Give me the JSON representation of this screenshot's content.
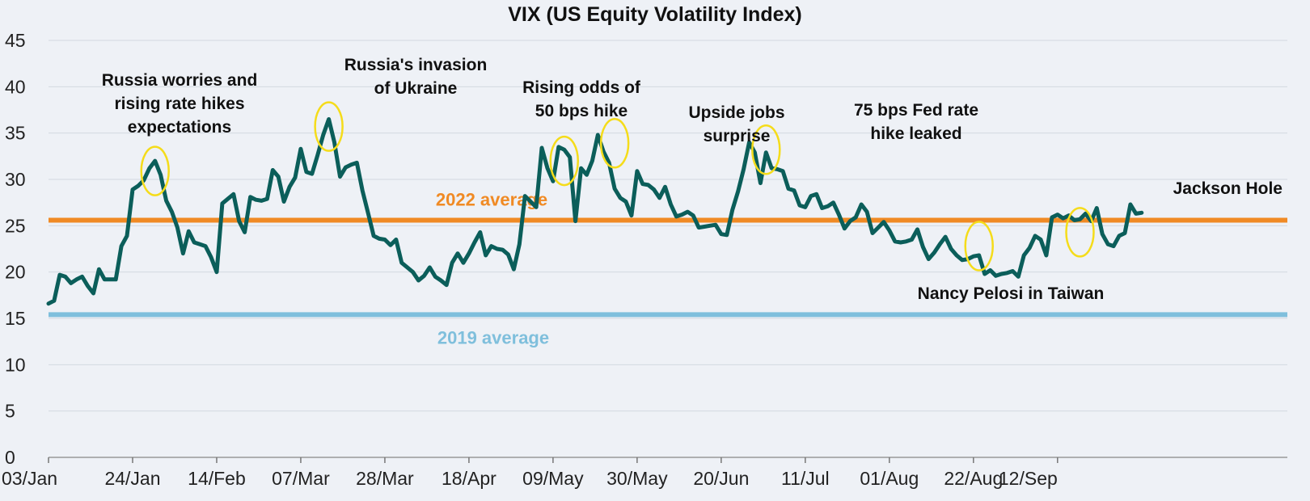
{
  "chart_data": {
    "type": "line",
    "title": "VIX (US Equity Volatility Index)",
    "xlabel": "",
    "ylabel": "",
    "ylim": [
      0,
      45
    ],
    "yticks": [
      0,
      5,
      10,
      15,
      20,
      25,
      30,
      35,
      40,
      45
    ],
    "xticks": [
      "03/Jan",
      "24/Jan",
      "14/Feb",
      "07/Mar",
      "28/Mar",
      "18/Apr",
      "09/May",
      "30/May",
      "20/Jun",
      "11/Jul",
      "01/Aug",
      "22/Aug",
      "12/Sep"
    ],
    "grid": true,
    "colors": {
      "series": "#0b5e5a",
      "avg_2022": "#f08a24",
      "avg_2019": "#7fbfdc",
      "highlight": "#f5dc1a"
    },
    "series": [
      {
        "name": "",
        "values": [
          16.6,
          16.9,
          19.7,
          19.5,
          18.8,
          19.2,
          19.5,
          18.5,
          17.7,
          20.3,
          19.2,
          19.2,
          19.2,
          22.8,
          23.9,
          28.9,
          29.3,
          29.9,
          31.2,
          32.0,
          30.5,
          27.7,
          26.5,
          24.8,
          22.0,
          24.4,
          23.2,
          23.0,
          22.8,
          21.6,
          20.0,
          27.4,
          27.9,
          28.4,
          25.5,
          24.3,
          28.1,
          27.8,
          27.7,
          27.9,
          31.0,
          30.3,
          27.6,
          29.2,
          30.2,
          33.3,
          30.8,
          30.6,
          32.6,
          34.8,
          36.5,
          34.0,
          30.3,
          31.3,
          31.6,
          31.8,
          28.8,
          26.4,
          23.9,
          23.6,
          23.5,
          22.9,
          23.5,
          21.0,
          20.5,
          20.0,
          19.1,
          19.6,
          20.5,
          19.5,
          19.1,
          18.6,
          21.0,
          22.0,
          21.0,
          22.0,
          23.2,
          24.3,
          21.8,
          22.8,
          22.5,
          22.4,
          21.9,
          20.3,
          23.0,
          28.2,
          27.6,
          27.0,
          33.4,
          31.2,
          29.8,
          33.5,
          33.2,
          32.4,
          25.5,
          31.2,
          30.5,
          32.0,
          34.8,
          33.0,
          31.8,
          29.0,
          28.0,
          27.6,
          26.1,
          30.9,
          29.5,
          29.4,
          28.9,
          28.0,
          29.2,
          27.3,
          26.0,
          26.2,
          26.5,
          26.1,
          24.8,
          24.9,
          25.0,
          25.1,
          24.1,
          24.0,
          26.7,
          28.7,
          31.1,
          34.0,
          32.9,
          29.6,
          32.9,
          31.2,
          31.1,
          30.9,
          29.0,
          28.8,
          27.2,
          27.0,
          28.2,
          28.4,
          26.9,
          27.1,
          27.5,
          26.2,
          24.7,
          25.5,
          25.9,
          27.3,
          26.5,
          24.2,
          24.8,
          25.4,
          24.5,
          23.3,
          23.2,
          23.3,
          23.5,
          24.6,
          22.7,
          21.4,
          22.1,
          23.0,
          23.8,
          22.5,
          21.8,
          21.3,
          21.4,
          21.7,
          21.8,
          19.8,
          20.2,
          19.6,
          19.8,
          19.9,
          20.1,
          19.5,
          21.8,
          22.6,
          23.9,
          23.5,
          21.8,
          25.9,
          26.2,
          25.8,
          26.1,
          25.6,
          25.7,
          26.3,
          25.5,
          26.9,
          24.1,
          23.0,
          22.8,
          23.9,
          24.2,
          27.3,
          26.3,
          26.4
        ]
      }
    ],
    "x_range_index": [
      0,
      221
    ],
    "xtick_index": [
      0,
      15,
      30,
      45,
      60,
      75,
      90,
      105,
      120,
      135,
      150,
      165,
      180
    ],
    "reference_lines": [
      {
        "label": "2022 average",
        "value": 25.6,
        "color": "#f08a24"
      },
      {
        "label": "2019 average",
        "value": 15.4,
        "color": "#7fbfdc"
      }
    ],
    "annotations": [
      {
        "lines": [
          "Russia worries and",
          "rising rate hikes",
          "expectations"
        ],
        "index": 19,
        "value": 30.9,
        "highlight": true
      },
      {
        "lines": [
          "Russia's invasion",
          "of Ukraine"
        ],
        "index": 50,
        "value": 35.7,
        "highlight": true
      },
      {
        "lines": [
          "Rising odds of",
          "50 bps hike"
        ],
        "index": 92,
        "value": 32.0,
        "highlight": true
      },
      {
        "lines": [
          "Upside jobs",
          "surprise"
        ],
        "index": 101,
        "value": 33.9,
        "highlight": true
      },
      {
        "lines": [
          "75 bps Fed rate",
          "hike leaked"
        ],
        "index": 128,
        "value": 33.2,
        "highlight": true
      },
      {
        "lines": [
          "Nancy Pelosi in Taiwan"
        ],
        "index": 166,
        "value": 22.8,
        "highlight": true
      },
      {
        "lines": [
          "Jackson Hole"
        ],
        "index": 184,
        "value": 24.3,
        "highlight": true
      }
    ]
  }
}
